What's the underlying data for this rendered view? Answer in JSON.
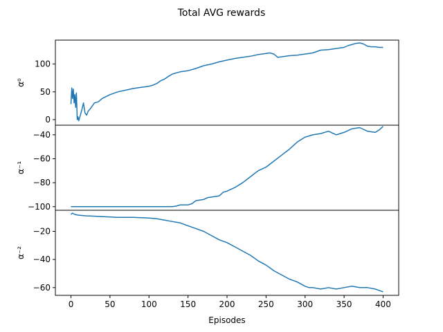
{
  "chart_data": {
    "type": "line",
    "title": "Total AVG rewards",
    "xlabel": "Episodes",
    "xlim": [
      -20,
      420
    ],
    "xticks": [
      0,
      50,
      100,
      150,
      200,
      250,
      300,
      350,
      400
    ],
    "line_color": "#1f77b4",
    "grid": false,
    "subplots": [
      {
        "ylabel": "α⁰",
        "ylim": [
          -10,
          143
        ],
        "yticks": [
          0,
          50,
          100
        ],
        "series": [
          {
            "x": [
              0,
              1,
              2,
              3,
              4,
              5,
              6,
              7,
              8,
              9,
              10,
              12,
              14,
              16,
              18,
              20,
              22,
              25,
              30,
              35,
              40,
              50,
              60,
              70,
              80,
              90,
              100,
              105,
              110,
              115,
              120,
              125,
              130,
              140,
              150,
              160,
              170,
              180,
              190,
              200,
              210,
              220,
              230,
              240,
              250,
              255,
              260,
              265,
              270,
              280,
              290,
              300,
              310,
              320,
              330,
              340,
              350,
              355,
              360,
              365,
              370,
              375,
              380,
              385,
              390,
              395,
              400
            ],
            "y": [
              28,
              57,
              38,
              55,
              30,
              45,
              22,
              48,
              0,
              5,
              -2,
              8,
              18,
              30,
              12,
              8,
              15,
              20,
              30,
              32,
              38,
              45,
              50,
              53,
              56,
              58,
              60,
              62,
              65,
              70,
              73,
              78,
              82,
              86,
              88,
              92,
              97,
              100,
              104,
              107,
              110,
              112,
              114,
              117,
              119,
              120,
              118,
              112,
              113,
              115,
              116,
              118,
              120,
              125,
              126,
              128,
              130,
              133,
              135,
              137,
              138,
              136,
              132,
              131,
              131,
              130,
              130
            ]
          }
        ]
      },
      {
        "ylabel": "α⁻¹",
        "ylim": [
          -103,
          -32
        ],
        "yticks": [
          -100,
          -80,
          -60,
          -40
        ],
        "series": [
          {
            "x": [
              0,
              50,
              100,
              130,
              135,
              140,
              150,
              155,
              160,
              170,
              175,
              180,
              190,
              195,
              200,
              210,
              220,
              230,
              240,
              250,
              260,
              270,
              280,
              290,
              300,
              310,
              320,
              330,
              340,
              350,
              360,
              370,
              380,
              390,
              395,
              400
            ],
            "y": [
              -100,
              -100,
              -100,
              -100,
              -99.5,
              -98.5,
              -98.5,
              -97.5,
              -95,
              -94,
              -92.5,
              -92,
              -91,
              -88,
              -87,
              -84,
              -80,
              -75,
              -70,
              -67,
              -62,
              -57,
              -52,
              -46,
              -42,
              -40,
              -39,
              -37,
              -40,
              -38,
              -35,
              -34,
              -37,
              -38,
              -36,
              -33
            ]
          }
        ]
      },
      {
        "ylabel": "α⁻²",
        "ylim": [
          -65.5,
          -5
        ],
        "yticks": [
          -20,
          -40,
          -60
        ],
        "series": [
          {
            "x": [
              0,
              2,
              5,
              10,
              20,
              40,
              60,
              80,
              100,
              110,
              120,
              130,
              140,
              150,
              160,
              170,
              180,
              190,
              200,
              210,
              220,
              230,
              240,
              250,
              260,
              270,
              280,
              290,
              300,
              305,
              310,
              320,
              330,
              340,
              350,
              360,
              370,
              380,
              390,
              395,
              400
            ],
            "y": [
              -8,
              -7,
              -8,
              -8.5,
              -9,
              -9.5,
              -10,
              -10,
              -10.5,
              -11,
              -12,
              -13,
              -14,
              -16,
              -18,
              -20,
              -23,
              -26,
              -28,
              -31,
              -34,
              -37,
              -41,
              -44,
              -48,
              -51,
              -54,
              -56,
              -59,
              -60,
              -60,
              -61,
              -60,
              -61,
              -60,
              -59,
              -60,
              -60,
              -61,
              -62,
              -63
            ]
          }
        ]
      }
    ]
  }
}
